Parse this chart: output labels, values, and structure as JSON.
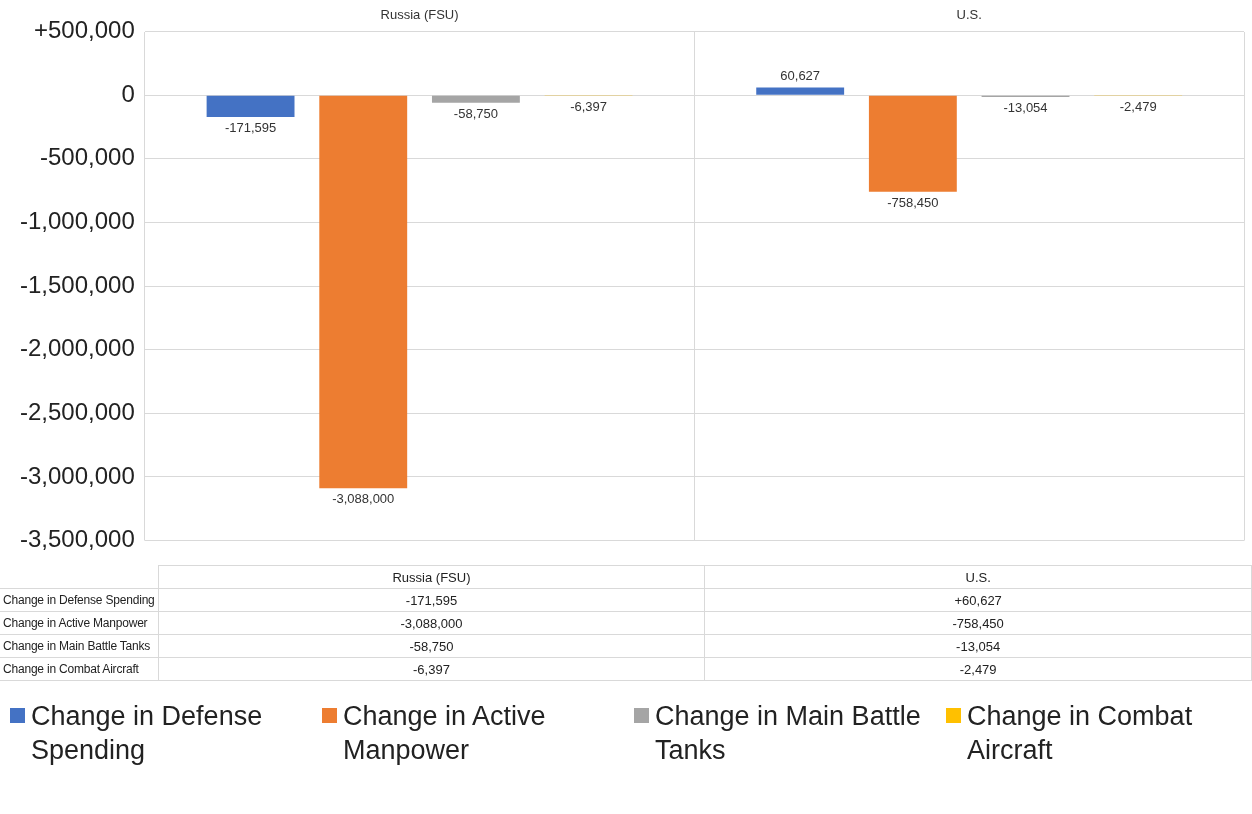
{
  "chart_data": {
    "type": "bar",
    "categories": [
      "Russia (FSU)",
      "U.S."
    ],
    "series": [
      {
        "name": "Change in Defense Spending",
        "color": "#4472c4",
        "values": [
          -171595,
          60627
        ],
        "value_labels": [
          "-171,595",
          "60,627"
        ]
      },
      {
        "name": "Change in Active Manpower",
        "color": "#ed7d31",
        "values": [
          -3088000,
          -758450
        ],
        "value_labels": [
          "-3,088,000",
          "-758,450"
        ]
      },
      {
        "name": "Change in Main Battle Tanks",
        "color": "#a5a5a5",
        "values": [
          -58750,
          -13054
        ],
        "value_labels": [
          "-58,750",
          "-13,054"
        ]
      },
      {
        "name": "Change in Combat Aircraft",
        "color": "#ffc000",
        "values": [
          -6397,
          -2479
        ],
        "value_labels": [
          "-6,397",
          "-2,479"
        ]
      }
    ],
    "ylim": [
      -3500000,
      500000
    ],
    "yticks": [
      {
        "value": -3500000,
        "label": "-3,500,000"
      },
      {
        "value": -3000000,
        "label": "-3,000,000"
      },
      {
        "value": -2500000,
        "label": "-2,500,000"
      },
      {
        "value": -2000000,
        "label": "-2,000,000"
      },
      {
        "value": -1500000,
        "label": "-1,500,000"
      },
      {
        "value": -1000000,
        "label": "-1,000,000"
      },
      {
        "value": -500000,
        "label": "-500,000"
      },
      {
        "value": 0,
        "label": "0"
      },
      {
        "value": 500000,
        "label": "+500,000"
      }
    ],
    "annotations": [
      "-171,595",
      "+60,627",
      "-3,088,000",
      "-758,450",
      "-58,750",
      "-13,054",
      "-6,397",
      "-2,479"
    ],
    "grid": true,
    "legend": "bottom"
  }
}
